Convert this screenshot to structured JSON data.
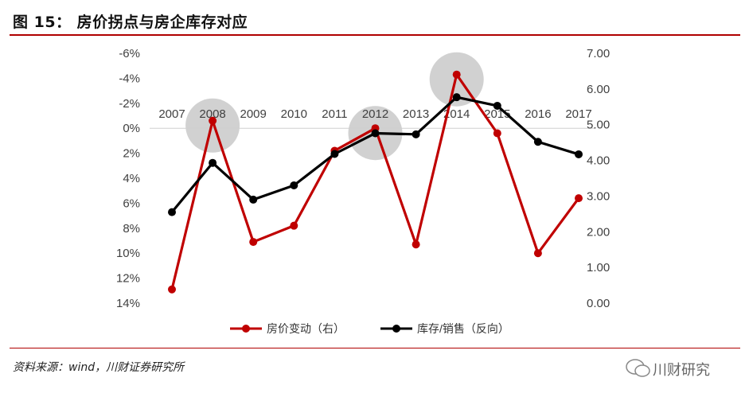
{
  "header": {
    "title": "图 15： 房价拐点与房企库存对应"
  },
  "footer": {
    "source": "资料来源：wind，川财证券研究所",
    "watermark": "川财研究"
  },
  "chart_data": {
    "type": "line",
    "categories": [
      "2007",
      "2008",
      "2009",
      "2010",
      "2011",
      "2012",
      "2013",
      "2014",
      "2015",
      "2016",
      "2017"
    ],
    "left_axis": {
      "ticks": [
        "-6%",
        "-4%",
        "-2%",
        "0%",
        "2%",
        "4%",
        "6%",
        "8%",
        "10%",
        "12%",
        "14%"
      ],
      "range": [
        -6,
        14
      ],
      "reversed": true
    },
    "right_axis": {
      "ticks": [
        "7.00",
        "6.00",
        "5.00",
        "4.00",
        "3.00",
        "2.00",
        "1.00",
        "0.00"
      ],
      "range": [
        0,
        7
      ]
    },
    "series": [
      {
        "name": "房价变动（右）",
        "axis": "left",
        "color": "#c00000",
        "values": [
          12.9,
          -0.6,
          9.1,
          7.8,
          1.8,
          0.0,
          9.3,
          -4.3,
          0.4,
          10.0,
          5.6
        ]
      },
      {
        "name": "库存/销售（反向）",
        "axis": "right",
        "color": "#000000",
        "values": [
          2.55,
          3.93,
          2.9,
          3.3,
          4.18,
          4.76,
          4.73,
          5.77,
          5.53,
          4.52,
          4.17
        ]
      }
    ],
    "highlight_years": [
      "2008",
      "2012",
      "2014"
    ],
    "legend_position": "bottom"
  }
}
